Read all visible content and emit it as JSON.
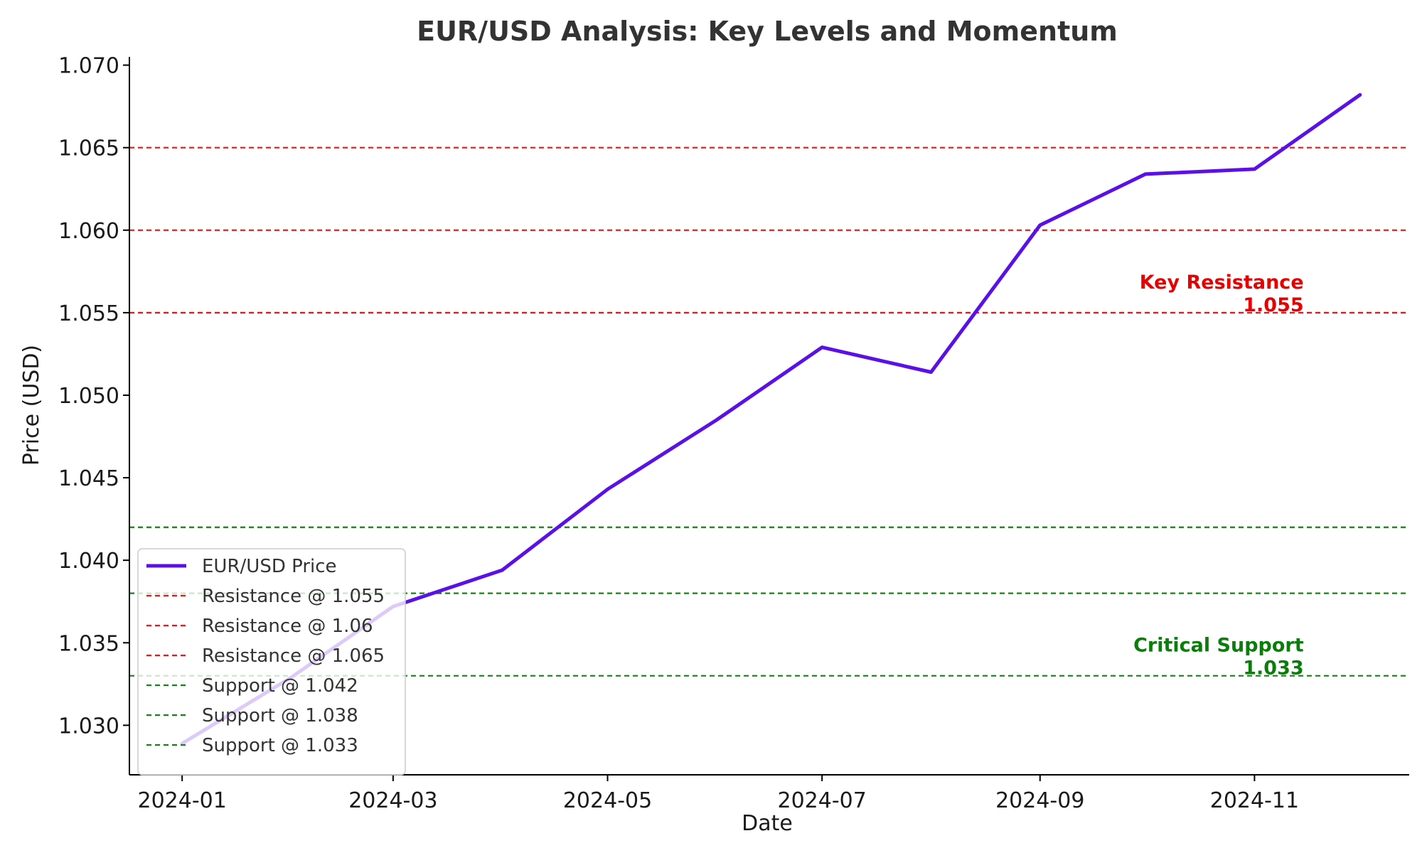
{
  "chart_data": {
    "type": "line",
    "title": "EUR/USD Analysis: Key Levels and Momentum",
    "xlabel": "Date",
    "ylabel": "Price (USD)",
    "x_ticks": [
      "2024-01",
      "2024-03",
      "2024-05",
      "2024-07",
      "2024-09",
      "2024-11"
    ],
    "y_ticks": [
      "1.030",
      "1.035",
      "1.040",
      "1.045",
      "1.050",
      "1.055",
      "1.060",
      "1.065",
      "1.070"
    ],
    "ylim": [
      1.027,
      1.0705
    ],
    "xlim": [
      "2023-12-17",
      "2024-12-15"
    ],
    "grid": false,
    "legend_position": "bottom-left",
    "series": [
      {
        "name": "EUR/USD Price",
        "color": "#5b10e6",
        "x": [
          "2024-01-01",
          "2024-02-01",
          "2024-03-01",
          "2024-04-01",
          "2024-05-01",
          "2024-06-01",
          "2024-07-01",
          "2024-08-01",
          "2024-09-01",
          "2024-10-01",
          "2024-11-01",
          "2024-12-01"
        ],
        "y": [
          1.0289,
          1.0329,
          1.0372,
          1.0394,
          1.0443,
          1.0485,
          1.0529,
          1.0514,
          1.0603,
          1.0634,
          1.0637,
          1.0682
        ]
      }
    ],
    "levels": [
      {
        "name": "Resistance @ 1.055",
        "value": 1.055,
        "kind": "resistance",
        "color": "#e31a1c"
      },
      {
        "name": "Resistance @ 1.06",
        "value": 1.06,
        "kind": "resistance",
        "color": "#e31a1c"
      },
      {
        "name": "Resistance @ 1.065",
        "value": 1.065,
        "kind": "resistance",
        "color": "#e31a1c"
      },
      {
        "name": "Support @ 1.042",
        "value": 1.042,
        "kind": "support",
        "color": "#1a7f1a"
      },
      {
        "name": "Support @ 1.038",
        "value": 1.038,
        "kind": "support",
        "color": "#1a7f1a"
      },
      {
        "name": "Support @ 1.033",
        "value": 1.033,
        "kind": "support",
        "color": "#1a7f1a"
      }
    ],
    "annotations": [
      {
        "lines": [
          "Key Resistance",
          "1.055"
        ],
        "value": 1.055,
        "color": "#e60000"
      },
      {
        "lines": [
          "Critical Support",
          "1.033"
        ],
        "value": 1.033,
        "color": "#0a7d0a"
      }
    ]
  }
}
